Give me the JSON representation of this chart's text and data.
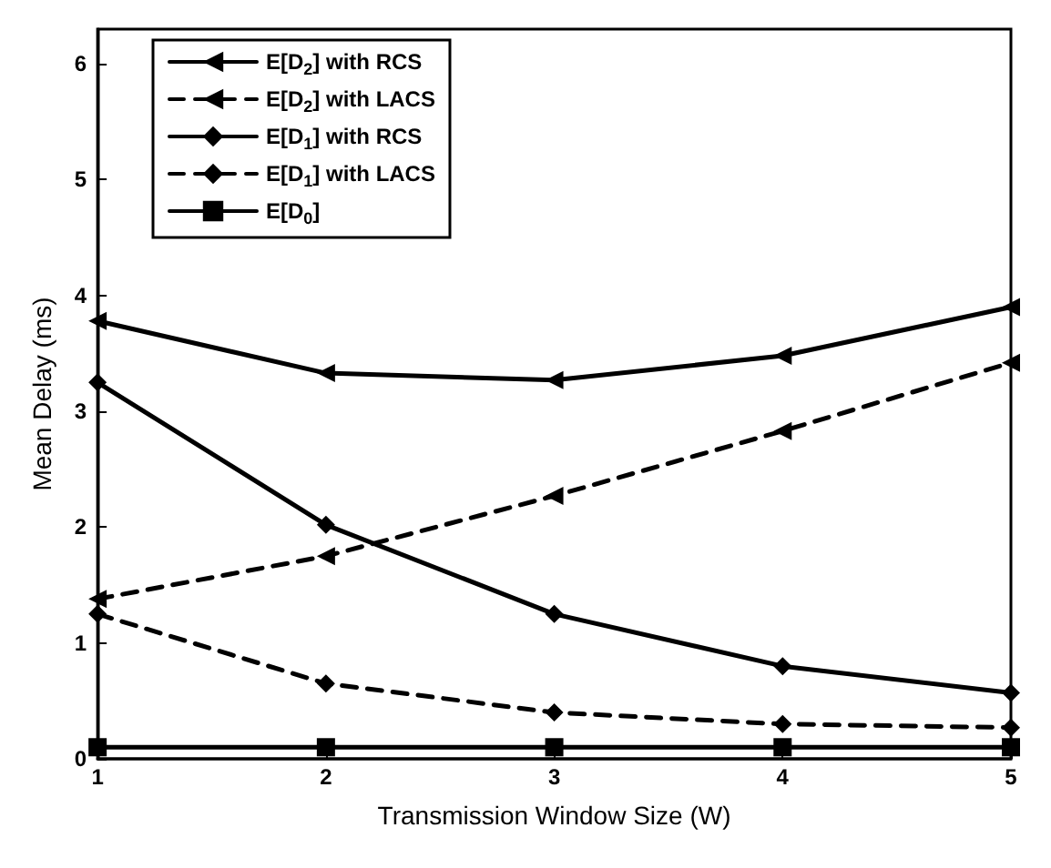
{
  "chart_data": {
    "type": "line",
    "xlabel": "Transmission Window Size (W)",
    "ylabel": "Mean Delay (ms)",
    "x": [
      1,
      2,
      3,
      4,
      5
    ],
    "xlim": [
      1,
      5
    ],
    "xticks": [
      1,
      2,
      3,
      4,
      5
    ],
    "ylim": [
      0,
      6.3
    ],
    "yticks": [
      0,
      1,
      2,
      3,
      4,
      5,
      6
    ],
    "grid": false,
    "legend": "top left",
    "series": [
      {
        "name": "E[D$_{2}$] with RCS",
        "color": "#000000",
        "marker": "triangle",
        "line_style": "solid",
        "values": [
          3.78,
          3.33,
          3.27,
          3.48,
          3.9
        ]
      },
      {
        "name": "E[D$_{2}$] with LACS",
        "color": "#000000",
        "marker": "triangle",
        "line_style": "dashed",
        "values": [
          1.38,
          1.75,
          2.27,
          2.83,
          3.42
        ]
      },
      {
        "name": "E[D$_{1}$] with RCS",
        "color": "#000000",
        "marker": "diamond",
        "line_style": "solid",
        "values": [
          3.25,
          2.02,
          1.25,
          0.8,
          0.57
        ]
      },
      {
        "name": "E[D$_{1}$] with LACS",
        "color": "#000000",
        "marker": "diamond",
        "line_style": "dashed",
        "values": [
          1.25,
          0.65,
          0.4,
          0.3,
          0.27
        ]
      },
      {
        "name": "E[D$_{0}$]",
        "color": "#000000",
        "marker": "square",
        "line_style": "solid",
        "values": [
          0.1,
          0.1,
          0.1,
          0.1,
          0.1
        ]
      }
    ]
  }
}
